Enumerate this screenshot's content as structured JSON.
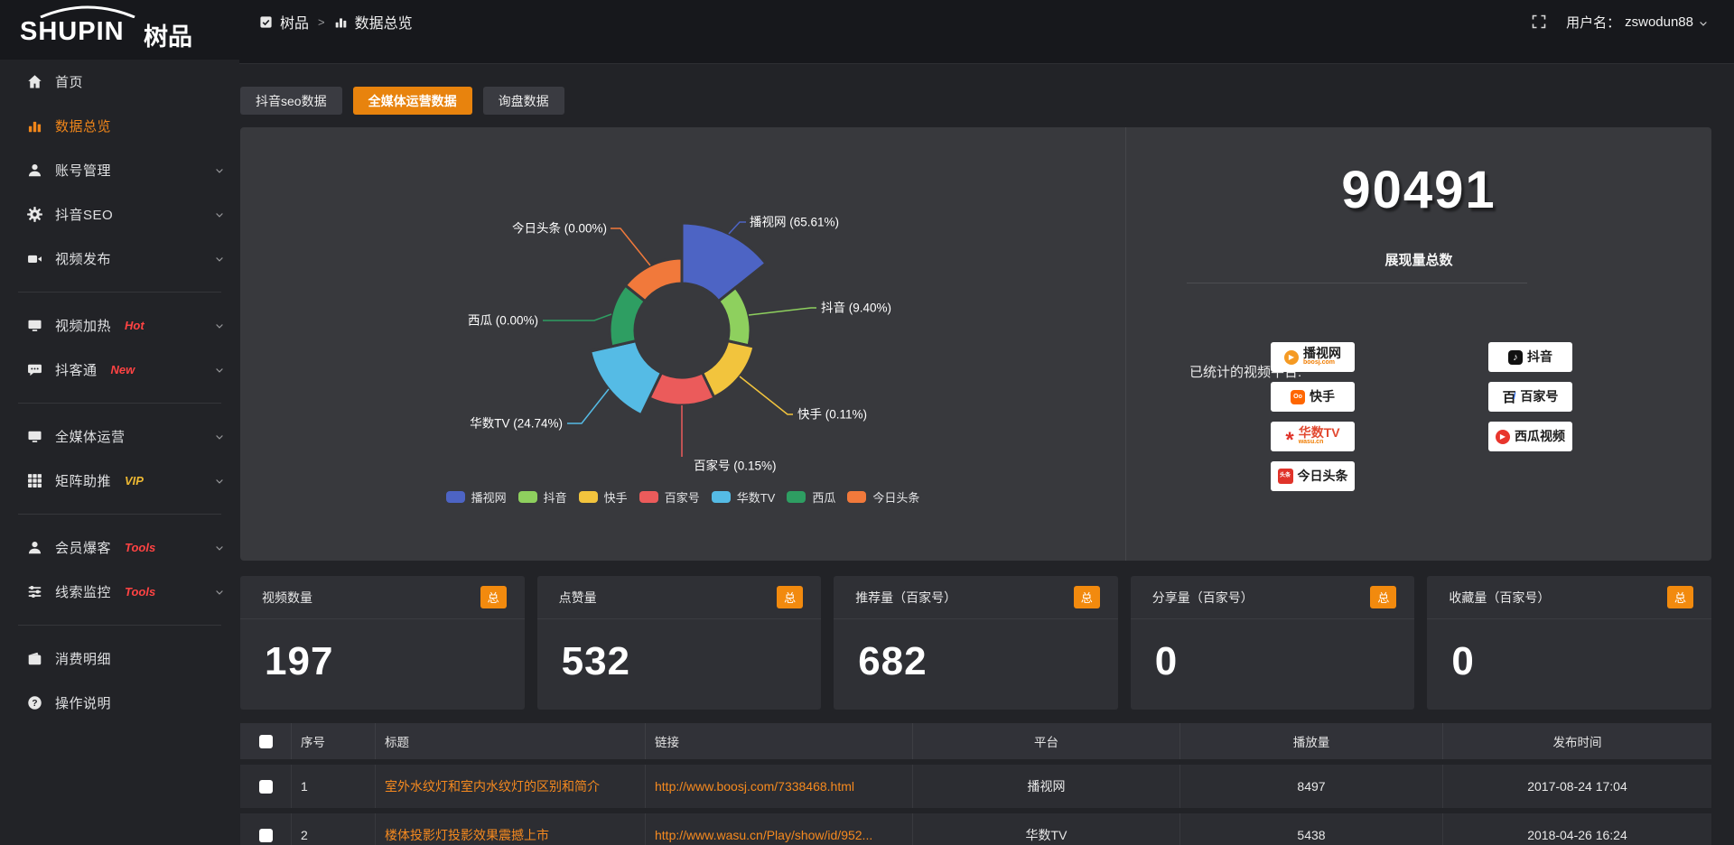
{
  "header": {
    "logo_text": "SHUPIN",
    "logo_suffix": "树品",
    "breadcrumb": {
      "root": "树品",
      "separator": ">",
      "current": "数据总览"
    },
    "username_label": "用户名：",
    "username": "zswodun88"
  },
  "sidebar": {
    "items": [
      {
        "id": "home",
        "label": "首页",
        "icon": "home-icon"
      },
      {
        "id": "data-overview",
        "label": "数据总览",
        "icon": "bar-chart-icon",
        "active": true
      },
      {
        "id": "account",
        "label": "账号管理",
        "icon": "user-icon",
        "chevron": true
      },
      {
        "id": "douyin-seo",
        "label": "抖音SEO",
        "icon": "gear-icon",
        "chevron": true
      },
      {
        "id": "video-publish",
        "label": "视频发布",
        "icon": "video-icon",
        "chevron": true,
        "divider_after": true
      },
      {
        "id": "video-heat",
        "label": "视频加热",
        "icon": "heat-icon",
        "badge": "Hot",
        "badge_color": "#ff4343",
        "chevron": true
      },
      {
        "id": "doukertong",
        "label": "抖客通",
        "icon": "chat-icon",
        "badge": "New",
        "badge_color": "#ff4343",
        "chevron": true,
        "divider_after": true
      },
      {
        "id": "media-ops",
        "label": "全媒体运营",
        "icon": "monitor-icon",
        "chevron": true
      },
      {
        "id": "matrix-boost",
        "label": "矩阵助推",
        "icon": "grid-icon",
        "badge": "VIP",
        "badge_color": "#edb832",
        "chevron": true,
        "divider_after": true
      },
      {
        "id": "member-burst",
        "label": "会员爆客",
        "icon": "member-icon",
        "badge": "Tools",
        "badge_color": "#ff4343",
        "chevron": true
      },
      {
        "id": "leads-monitor",
        "label": "线索监控",
        "icon": "sliders-icon",
        "badge": "Tools",
        "badge_color": "#ff4343",
        "chevron": true,
        "divider_after": true
      },
      {
        "id": "spend-detail",
        "label": "消费明细",
        "icon": "wallet-icon"
      },
      {
        "id": "help",
        "label": "操作说明",
        "icon": "question-icon"
      }
    ]
  },
  "tabs": [
    {
      "id": "douyin-seo-data",
      "label": "抖音seo数据"
    },
    {
      "id": "media-ops-data",
      "label": "全媒体运营数据",
      "active": true
    },
    {
      "id": "inquiry-data",
      "label": "询盘数据"
    }
  ],
  "chart_data": {
    "type": "pie",
    "variant": "nightingale-rose",
    "title": "",
    "legend_position": "bottom",
    "items": [
      {
        "name": "播视网",
        "pct": 65.61,
        "color": "#4d64c4"
      },
      {
        "name": "抖音",
        "pct": 9.4,
        "color": "#8ed05e"
      },
      {
        "name": "快手",
        "pct": 0.11,
        "color": "#f2c43d"
      },
      {
        "name": "百家号",
        "pct": 0.15,
        "color": "#eb5b5b"
      },
      {
        "name": "华数TV",
        "pct": 24.74,
        "color": "#55bbe5"
      },
      {
        "name": "西瓜",
        "pct": 0.0,
        "color": "#2e9e62"
      },
      {
        "name": "今日头条",
        "pct": 0.0,
        "color": "#f1793b"
      }
    ]
  },
  "summary": {
    "total_value": "90491",
    "total_label": "展现量总数",
    "platforms_title": "已统计的视频平台:",
    "platforms_col1": [
      {
        "name": "播视网",
        "sub": "boosj.com",
        "icon": "boosj"
      },
      {
        "name": "快手",
        "icon": "kuaishou"
      },
      {
        "name": "华数TV",
        "sub": "wasu.cn",
        "icon": "wasu",
        "name_red": true
      },
      {
        "name": "今日头条",
        "icon": "toutiao"
      }
    ],
    "platforms_col2": [
      {
        "name": "抖音",
        "icon": "douyin"
      },
      {
        "name": "百家号",
        "icon": "baijiahao"
      },
      {
        "name": "西瓜视频",
        "icon": "xigua"
      }
    ]
  },
  "stat_cards": [
    {
      "label": "视频数量",
      "badge": "总",
      "value": "197"
    },
    {
      "label": "点赞量",
      "badge": "总",
      "value": "532"
    },
    {
      "label": "推荐量（百家号）",
      "badge": "总",
      "value": "682"
    },
    {
      "label": "分享量（百家号）",
      "badge": "总",
      "value": "0"
    },
    {
      "label": "收藏量（百家号）",
      "badge": "总",
      "value": "0"
    }
  ],
  "table": {
    "columns": [
      "序号",
      "标题",
      "链接",
      "平台",
      "播放量",
      "发布时间"
    ],
    "rows": [
      {
        "index": "1",
        "title": "室外水纹灯和室内水纹灯的区别和简介",
        "link": "http://www.boosj.com/7338468.html",
        "platform": "播视网",
        "views": "8497",
        "time": "2017-08-24 17:04"
      },
      {
        "index": "2",
        "title": "楼体投影灯投影效果震撼上市",
        "link": "http://www.wasu.cn/Play/show/id/952...",
        "platform": "华数TV",
        "views": "5438",
        "time": "2018-04-26 16:24"
      }
    ]
  }
}
